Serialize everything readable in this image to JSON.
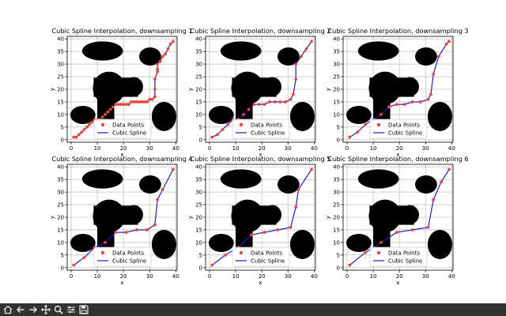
{
  "toolbar": {
    "buttons": [
      {
        "name": "home-icon"
      },
      {
        "name": "back-arrow-icon"
      },
      {
        "name": "forward-arrow-icon"
      },
      {
        "name": "pan-move-icon"
      },
      {
        "name": "zoom-magnifier-icon"
      },
      {
        "name": "configure-subplots-icon"
      },
      {
        "name": "save-disk-icon"
      }
    ]
  },
  "colors": {
    "obstacle": "#000000",
    "data_points": "#e8453c",
    "spline": "#1f1fbf",
    "toolbar_bg": "#323232",
    "toolbar_icon": "#e6e6e6"
  },
  "chart_data": [
    {
      "type": "scatter",
      "title": "Cubic Spline Interpolation, downsampling 1",
      "xlabel": "x",
      "ylabel": "y",
      "xlim": [
        -1.5,
        40.5
      ],
      "ylim": [
        -1,
        41
      ],
      "xticks": [
        0,
        10,
        20,
        30,
        40
      ],
      "yticks": [
        0,
        5,
        10,
        15,
        20,
        25,
        30,
        35,
        40
      ],
      "grid": true,
      "legend_position": "lower-center",
      "series": [
        {
          "name": "Data Points",
          "style": "markers",
          "x": [
            1,
            2,
            3,
            4,
            5,
            6,
            7,
            8,
            9,
            10,
            11,
            12,
            13,
            14,
            15,
            16,
            17,
            18,
            19,
            20,
            21,
            22,
            23,
            24,
            25,
            26,
            27,
            28,
            29,
            30,
            31,
            32,
            32,
            32,
            33,
            33,
            33,
            34,
            35,
            36,
            37,
            38,
            39
          ],
          "y": [
            1,
            1,
            2,
            3,
            4,
            5,
            6,
            7,
            8,
            8,
            8,
            9,
            10,
            11,
            12,
            13,
            14,
            14,
            14,
            14,
            14,
            14,
            15,
            15,
            15,
            15,
            15,
            15,
            15,
            16,
            16,
            17,
            20,
            24,
            27,
            28,
            30,
            31,
            33,
            34,
            36,
            38,
            39
          ]
        },
        {
          "name": "Cubic Spline",
          "style": "line",
          "x": [
            1,
            2,
            3,
            4,
            5,
            6,
            7,
            8,
            9,
            10,
            11,
            12,
            13,
            14,
            15,
            16,
            17,
            18,
            19,
            20,
            21,
            22,
            23,
            24,
            25,
            26,
            27,
            28,
            29,
            30,
            31,
            32,
            32,
            32,
            33,
            33,
            33,
            34,
            35,
            36,
            37,
            38,
            39
          ],
          "y": [
            1,
            1,
            2,
            3,
            4,
            5,
            6,
            7,
            8,
            8,
            8,
            9,
            10,
            11,
            12,
            13,
            14,
            14,
            14,
            14,
            14,
            14,
            15,
            15,
            15,
            15,
            15,
            15,
            15,
            16,
            16,
            17,
            20,
            24,
            27,
            28,
            30,
            31,
            33,
            34,
            36,
            38,
            39
          ]
        }
      ]
    },
    {
      "type": "scatter",
      "title": "Cubic Spline Interpolation, downsampling 2",
      "xlabel": "x",
      "ylabel": "y",
      "xlim": [
        -1.5,
        40.5
      ],
      "ylim": [
        -1,
        41
      ],
      "xticks": [
        0,
        10,
        20,
        30,
        40
      ],
      "yticks": [
        0,
        5,
        10,
        15,
        20,
        25,
        30,
        35,
        40
      ],
      "grid": true,
      "legend_position": "lower-center",
      "series": [
        {
          "name": "Data Points",
          "style": "markers",
          "x": [
            1,
            3,
            5,
            7,
            9,
            11,
            13,
            15,
            17,
            19,
            21,
            23,
            25,
            27,
            29,
            31,
            32,
            33,
            33,
            35,
            37,
            39
          ],
          "y": [
            1,
            2,
            4,
            6,
            8,
            8,
            10,
            12,
            14,
            14,
            14,
            15,
            15,
            15,
            15,
            16,
            18,
            24,
            30,
            33,
            36,
            39
          ]
        },
        {
          "name": "Cubic Spline",
          "style": "line",
          "x": [
            1,
            3,
            5,
            7,
            9,
            11,
            13,
            15,
            17,
            19,
            21,
            23,
            25,
            27,
            29,
            31,
            32,
            33,
            33,
            35,
            37,
            39
          ],
          "y": [
            1,
            2,
            4,
            6,
            8,
            8,
            10,
            12,
            14,
            14,
            14,
            15,
            15,
            15,
            15,
            16,
            18,
            24,
            30,
            33,
            36,
            39
          ]
        }
      ]
    },
    {
      "type": "scatter",
      "title": "Cubic Spline Interpolation, downsampling 3",
      "xlabel": "x",
      "ylabel": "y",
      "xlim": [
        -1.5,
        40.5
      ],
      "ylim": [
        -1,
        41
      ],
      "xticks": [
        0,
        10,
        20,
        30,
        40
      ],
      "yticks": [
        0,
        5,
        10,
        15,
        20,
        25,
        30,
        35,
        40
      ],
      "grid": true,
      "legend_position": "lower-center",
      "series": [
        {
          "name": "Data Points",
          "style": "markers",
          "x": [
            1,
            4,
            7,
            10,
            13,
            16,
            19,
            22,
            25,
            28,
            31,
            32,
            33,
            35,
            38,
            39
          ],
          "y": [
            1,
            3,
            6,
            8,
            10,
            13,
            14,
            14,
            15,
            15,
            16,
            18,
            26,
            33,
            38,
            39
          ]
        },
        {
          "name": "Cubic Spline",
          "style": "line",
          "x": [
            1,
            4,
            7,
            10,
            13,
            16,
            19,
            22,
            25,
            28,
            31,
            32,
            33,
            35,
            38,
            39
          ],
          "y": [
            1,
            3,
            6,
            8,
            10,
            13,
            14,
            14,
            15,
            15,
            16,
            18,
            26,
            33,
            38,
            39
          ]
        }
      ]
    },
    {
      "type": "scatter",
      "title": "Cubic Spline Interpolation, downsampling 4",
      "xlabel": "x",
      "ylabel": "y",
      "xlim": [
        -1.5,
        40.5
      ],
      "ylim": [
        -1,
        41
      ],
      "xticks": [
        0,
        10,
        20,
        30,
        40
      ],
      "yticks": [
        0,
        5,
        10,
        15,
        20,
        25,
        30,
        35,
        40
      ],
      "grid": true,
      "legend_position": "lower-center",
      "series": [
        {
          "name": "Data Points",
          "style": "markers",
          "x": [
            1,
            5,
            9,
            13,
            17,
            21,
            25,
            29,
            32,
            33,
            35,
            39
          ],
          "y": [
            1,
            4,
            8,
            10,
            14,
            14,
            15,
            15,
            17,
            27,
            31,
            39
          ]
        },
        {
          "name": "Cubic Spline",
          "style": "line",
          "x": [
            1,
            5,
            9,
            13,
            17,
            21,
            25,
            29,
            32,
            33,
            35,
            39
          ],
          "y": [
            1,
            4,
            8,
            10,
            14,
            14,
            15,
            15,
            17,
            27,
            31,
            39
          ]
        }
      ]
    },
    {
      "type": "scatter",
      "title": "Cubic Spline Interpolation, downsampling 5",
      "xlabel": "x",
      "ylabel": "y",
      "xlim": [
        -1.5,
        40.5
      ],
      "ylim": [
        -1,
        41
      ],
      "xticks": [
        0,
        10,
        20,
        30,
        40
      ],
      "yticks": [
        0,
        5,
        10,
        15,
        20,
        25,
        30,
        35,
        40
      ],
      "grid": true,
      "legend_position": "lower-center",
      "series": [
        {
          "name": "Data Points",
          "style": "markers",
          "x": [
            1,
            6,
            11,
            16,
            21,
            26,
            31,
            33,
            34,
            39
          ],
          "y": [
            1,
            5,
            8,
            13,
            14,
            15,
            16,
            24,
            31,
            39
          ]
        },
        {
          "name": "Cubic Spline",
          "style": "line",
          "x": [
            1,
            6,
            11,
            16,
            21,
            26,
            31,
            33,
            34,
            39
          ],
          "y": [
            1,
            5,
            8,
            13,
            14,
            15,
            16,
            24,
            31,
            39
          ]
        }
      ]
    },
    {
      "type": "scatter",
      "title": "Cubic Spline Interpolation, downsampling 6",
      "xlabel": "x",
      "ylabel": "y",
      "xlim": [
        -1.5,
        40.5
      ],
      "ylim": [
        -1,
        41
      ],
      "xticks": [
        0,
        10,
        20,
        30,
        40
      ],
      "yticks": [
        0,
        5,
        10,
        15,
        20,
        25,
        30,
        35,
        40
      ],
      "grid": true,
      "legend_position": "lower-center",
      "series": [
        {
          "name": "Data Points",
          "style": "markers",
          "x": [
            1,
            7,
            13,
            19,
            25,
            31,
            33,
            36,
            39
          ],
          "y": [
            1,
            6,
            10,
            14,
            15,
            16,
            27,
            34,
            39
          ]
        },
        {
          "name": "Cubic Spline",
          "style": "line",
          "x": [
            1,
            7,
            13,
            19,
            25,
            31,
            33,
            36,
            39
          ],
          "y": [
            1,
            6,
            10,
            14,
            15,
            16,
            27,
            34,
            39
          ]
        }
      ]
    }
  ]
}
